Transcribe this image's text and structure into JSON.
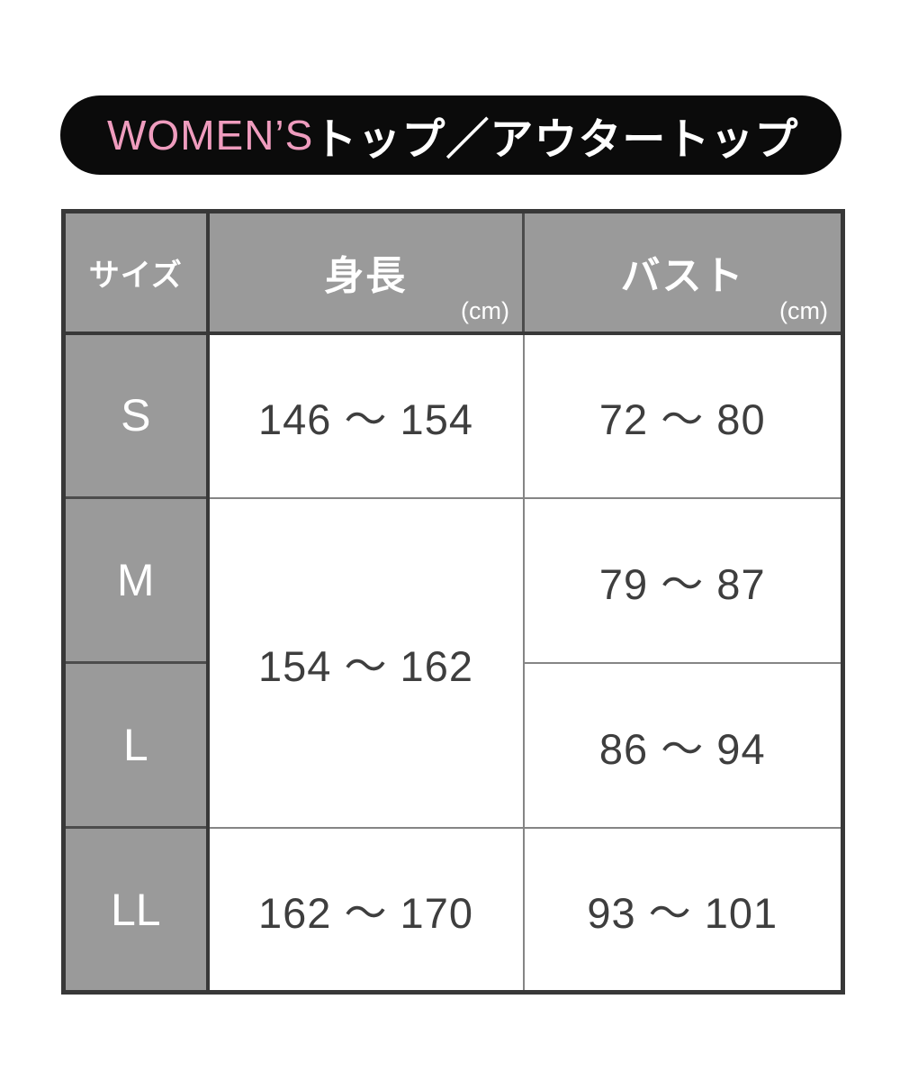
{
  "header": {
    "brand": "WOMEN’S",
    "category": "トップ／アウタートップ",
    "brand_color": "#ef9cbe",
    "bar_background": "#0b0b0b"
  },
  "table": {
    "columns": [
      {
        "label": "サイズ",
        "unit": ""
      },
      {
        "label": "身長",
        "unit": "(cm)"
      },
      {
        "label": "バスト",
        "unit": "(cm)"
      }
    ],
    "rows": [
      {
        "size": "S",
        "height": "146 〜 154",
        "bust": "72 〜 80"
      },
      {
        "size": "M",
        "height": "154 〜 162",
        "bust": "79 〜 87"
      },
      {
        "size": "L",
        "height": "",
        "bust": "86 〜 94"
      },
      {
        "size": "LL",
        "height": "162 〜 170",
        "bust": "93 〜 101"
      }
    ],
    "merged_note": "身長 154 〜 162 spans sizes M and L (rowspan 2)"
  },
  "colors": {
    "cell_gray": "#9a9a9a",
    "border_dark": "#383838",
    "border_mid": "#4c4c4c",
    "border_light": "#858585",
    "value_text": "#3e3e3e"
  },
  "chart_data": {
    "type": "table",
    "title": "WOMEN’S トップ／アウタートップ",
    "columns": [
      "サイズ",
      "身長 (cm)",
      "バスト (cm)"
    ],
    "rows": [
      [
        "S",
        "146〜154",
        "72〜80"
      ],
      [
        "M",
        "154〜162",
        "79〜87"
      ],
      [
        "L",
        "154〜162",
        "86〜94"
      ],
      [
        "LL",
        "162〜170",
        "93〜101"
      ]
    ],
    "notes": "height cell 154〜162 is merged across rows M and L"
  }
}
